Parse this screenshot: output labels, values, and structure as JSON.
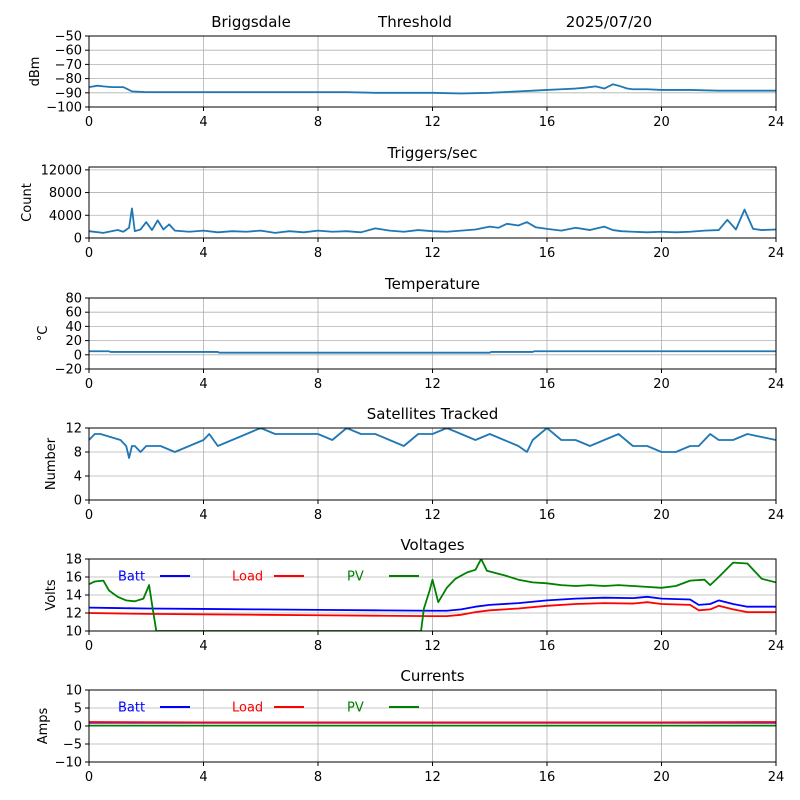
{
  "header": {
    "station": "Briggsdale",
    "mode": "Threshold",
    "date": "2025/07/20"
  },
  "colors": {
    "series_default": "#1f77b4",
    "batt": "#0000ff",
    "load": "#ff0000",
    "pv": "#008000",
    "grid": "#b0b0b0"
  },
  "chart_data": [
    {
      "type": "line",
      "title": "",
      "ylabel": "dBm",
      "xlim": [
        0,
        24
      ],
      "ylim": [
        -100,
        -50
      ],
      "xticks": [
        "0",
        "4",
        "8",
        "12",
        "16",
        "20",
        "24"
      ],
      "yticks": [
        "−50",
        "−60",
        "−70",
        "−80",
        "−90",
        "−100"
      ],
      "grid": true,
      "series": [
        {
          "color": "#1f77b4",
          "x": [
            0,
            0.3,
            0.5,
            0.8,
            1.2,
            1.5,
            2,
            3,
            4,
            5,
            6,
            7,
            8,
            9,
            10,
            11,
            12,
            13,
            14,
            15,
            15.5,
            16,
            16.5,
            17,
            17.3,
            17.7,
            18,
            18.3,
            18.5,
            18.8,
            19,
            19.5,
            20,
            21,
            22,
            23,
            24
          ],
          "y": [
            -86,
            -85,
            -85.5,
            -86,
            -86,
            -89,
            -89.5,
            -89.5,
            -89.5,
            -89.5,
            -89.5,
            -89.5,
            -89.5,
            -89.5,
            -90,
            -90,
            -90,
            -90.5,
            -90,
            -89,
            -88.5,
            -88,
            -87.5,
            -87,
            -86.5,
            -85.5,
            -87,
            -84,
            -85,
            -87,
            -87.5,
            -87.5,
            -88,
            -88,
            -88.5,
            -88.5,
            -88.5
          ]
        }
      ]
    },
    {
      "type": "line",
      "title": "Triggers/sec",
      "ylabel": "Count",
      "xlim": [
        0,
        24
      ],
      "ylim": [
        0,
        12500
      ],
      "xticks": [
        "0",
        "4",
        "8",
        "12",
        "16",
        "20",
        "24"
      ],
      "yticks": [
        "0",
        "4000",
        "8000",
        "12000"
      ],
      "grid": true,
      "series": [
        {
          "color": "#1f77b4",
          "x": [
            0,
            0.5,
            1,
            1.2,
            1.4,
            1.5,
            1.6,
            1.8,
            2,
            2.2,
            2.4,
            2.6,
            2.8,
            3,
            3.5,
            4,
            4.5,
            5,
            5.5,
            6,
            6.5,
            7,
            7.5,
            8,
            8.5,
            9,
            9.5,
            10,
            10.5,
            11,
            11.5,
            12,
            12.5,
            13,
            13.5,
            14,
            14.3,
            14.6,
            15,
            15.3,
            15.6,
            16,
            16.5,
            17,
            17.5,
            18,
            18.3,
            18.6,
            19,
            19.5,
            20,
            20.5,
            21,
            21.5,
            22,
            22.3,
            22.6,
            22.9,
            23.2,
            23.5,
            24
          ],
          "y": [
            1200,
            900,
            1400,
            1100,
            1800,
            5200,
            1200,
            1500,
            2800,
            1400,
            3100,
            1500,
            2400,
            1300,
            1100,
            1300,
            1000,
            1200,
            1100,
            1300,
            900,
            1200,
            1000,
            1300,
            1100,
            1200,
            1000,
            1700,
            1300,
            1100,
            1400,
            1200,
            1100,
            1300,
            1500,
            2000,
            1800,
            2500,
            2200,
            2800,
            1900,
            1600,
            1300,
            1800,
            1400,
            2000,
            1400,
            1200,
            1100,
            1000,
            1100,
            1000,
            1100,
            1300,
            1400,
            3200,
            1500,
            5000,
            1600,
            1400,
            1500
          ]
        }
      ]
    },
    {
      "type": "line",
      "title": "Temperature",
      "ylabel": "°C",
      "xlim": [
        0,
        24
      ],
      "ylim": [
        -20,
        80
      ],
      "xticks": [
        "0",
        "4",
        "8",
        "12",
        "16",
        "20",
        "24"
      ],
      "yticks": [
        "−20",
        "0",
        "20",
        "40",
        "60",
        "80"
      ],
      "grid": true,
      "series": [
        {
          "color": "#1f77b4",
          "x": [
            0,
            0.7,
            0.75,
            4.5,
            4.55,
            14,
            14.05,
            15.5,
            15.55,
            24
          ],
          "y": [
            5,
            5,
            4,
            4,
            3,
            3,
            4,
            4,
            5,
            5
          ]
        }
      ]
    },
    {
      "type": "line",
      "title": "Satellites Tracked",
      "ylabel": "Number",
      "xlim": [
        0,
        24
      ],
      "ylim": [
        0,
        12
      ],
      "xticks": [
        "0",
        "4",
        "8",
        "12",
        "16",
        "20",
        "24"
      ],
      "yticks": [
        "0",
        "4",
        "8",
        "12"
      ],
      "grid": true,
      "series": [
        {
          "color": "#1f77b4",
          "x": [
            0,
            0.2,
            0.4,
            1.1,
            1.3,
            1.4,
            1.5,
            1.6,
            1.8,
            2,
            2.5,
            3,
            3.5,
            4,
            4.2,
            4.5,
            5,
            5.5,
            6,
            6.5,
            7,
            8,
            8.5,
            9,
            9.5,
            10,
            10.5,
            11,
            11.5,
            12,
            12.5,
            13,
            13.5,
            14,
            14.5,
            15,
            15.3,
            15.5,
            16,
            16.5,
            17,
            17.5,
            18,
            18.5,
            19,
            19.5,
            20,
            20.5,
            21,
            21.3,
            21.7,
            22,
            22.5,
            23,
            24
          ],
          "y": [
            10,
            11,
            11,
            10,
            9,
            7,
            9,
            9,
            8,
            9,
            9,
            8,
            9,
            10,
            11,
            9,
            10,
            11,
            12,
            11,
            11,
            11,
            10,
            12,
            11,
            11,
            10,
            9,
            11,
            11,
            12,
            11,
            10,
            11,
            10,
            9,
            8,
            10,
            12,
            10,
            10,
            9,
            10,
            11,
            9,
            9,
            8,
            8,
            9,
            9,
            11,
            10,
            10,
            11,
            10
          ]
        }
      ]
    },
    {
      "type": "line",
      "title": "Voltages",
      "ylabel": "Volts",
      "xlim": [
        0,
        24
      ],
      "ylim": [
        10,
        18
      ],
      "xticks": [
        "0",
        "4",
        "8",
        "12",
        "16",
        "20",
        "24"
      ],
      "yticks": [
        "10",
        "12",
        "14",
        "16",
        "18"
      ],
      "grid": true,
      "legend": "top-left",
      "series": [
        {
          "name": "Batt",
          "color": "#0000ff",
          "x": [
            0,
            1,
            2,
            4,
            6,
            8,
            10,
            12,
            12.5,
            13,
            13.5,
            14,
            15,
            16,
            17,
            18,
            19,
            19.5,
            20,
            21,
            21.3,
            21.7,
            22,
            22.5,
            23,
            24
          ],
          "y": [
            12.6,
            12.55,
            12.5,
            12.45,
            12.4,
            12.35,
            12.3,
            12.25,
            12.25,
            12.4,
            12.7,
            12.9,
            13.1,
            13.4,
            13.6,
            13.7,
            13.65,
            13.8,
            13.6,
            13.5,
            12.9,
            13.0,
            13.4,
            13.0,
            12.7,
            12.7
          ]
        },
        {
          "name": "Load",
          "color": "#ff0000",
          "x": [
            0,
            1,
            2,
            4,
            6,
            8,
            10,
            12,
            12.5,
            13,
            13.5,
            14,
            15,
            16,
            17,
            18,
            19,
            19.5,
            20,
            21,
            21.3,
            21.7,
            22,
            22.5,
            23,
            24
          ],
          "y": [
            12.0,
            11.95,
            11.9,
            11.85,
            11.8,
            11.75,
            11.7,
            11.65,
            11.65,
            11.8,
            12.1,
            12.3,
            12.5,
            12.8,
            13.0,
            13.1,
            13.05,
            13.2,
            13.0,
            12.9,
            12.3,
            12.4,
            12.8,
            12.4,
            12.1,
            12.1
          ]
        },
        {
          "name": "PV",
          "color": "#008000",
          "x": [
            0,
            0.2,
            0.5,
            0.7,
            1,
            1.3,
            1.6,
            1.9,
            2.1,
            2.2,
            2.3,
            2.35,
            11.6,
            11.7,
            11.9,
            12,
            12.2,
            12.5,
            12.8,
            13.2,
            13.5,
            13.7,
            13.9,
            14.5,
            15,
            15.5,
            16,
            16.5,
            17,
            17.5,
            18,
            18.5,
            19,
            19.5,
            20,
            20.5,
            21,
            21.5,
            21.7,
            22,
            22.5,
            23,
            23.5,
            24
          ],
          "y": [
            15.2,
            15.5,
            15.6,
            14.5,
            13.8,
            13.4,
            13.3,
            13.6,
            15.1,
            13.0,
            11.0,
            10.0,
            10.0,
            12.5,
            14.5,
            15.7,
            13.2,
            14.8,
            15.8,
            16.5,
            16.8,
            18.0,
            16.7,
            16.2,
            15.7,
            15.4,
            15.3,
            15.1,
            15.0,
            15.1,
            15.0,
            15.1,
            15.0,
            14.9,
            14.8,
            15.0,
            15.6,
            15.7,
            15.1,
            16.0,
            17.6,
            17.5,
            15.8,
            15.4
          ]
        }
      ]
    },
    {
      "type": "line",
      "title": "Currents",
      "ylabel": "Amps",
      "xlim": [
        0,
        24
      ],
      "ylim": [
        -10,
        10
      ],
      "xticks": [
        "0",
        "4",
        "8",
        "12",
        "16",
        "20",
        "24"
      ],
      "yticks": [
        "−10",
        "−5",
        "0",
        "5",
        "10"
      ],
      "grid": true,
      "legend": "top-left",
      "series": [
        {
          "name": "Batt",
          "color": "#0000ff",
          "x": [
            0,
            24
          ],
          "y": [
            0.9,
            0.9
          ]
        },
        {
          "name": "Load",
          "color": "#ff0000",
          "x": [
            0,
            4,
            8,
            12,
            16,
            20,
            24
          ],
          "y": [
            1.1,
            1.0,
            1.0,
            1.0,
            1.0,
            1.0,
            1.1
          ]
        },
        {
          "name": "PV",
          "color": "#008000",
          "x": [
            0,
            24
          ],
          "y": [
            0.1,
            0.1
          ]
        }
      ]
    }
  ]
}
